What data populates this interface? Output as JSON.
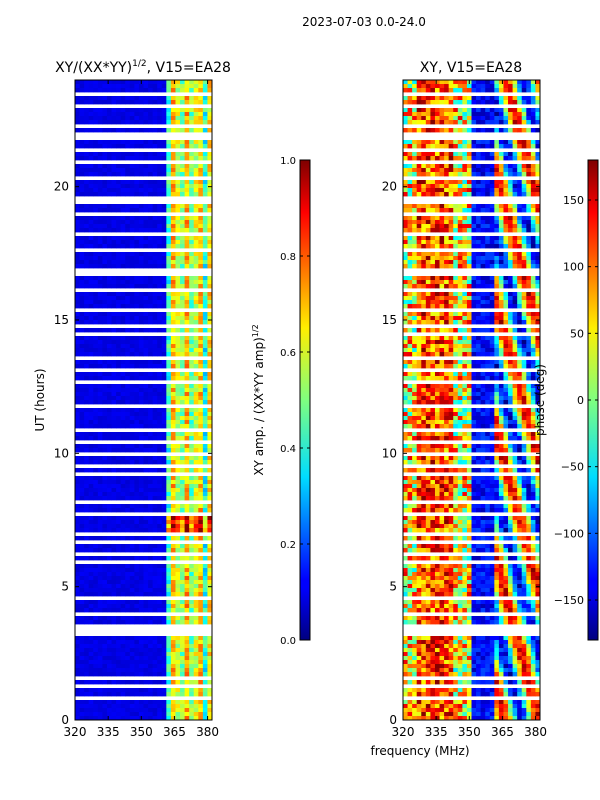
{
  "figure_title": "2023-07-03 0.0-24.0",
  "chart_data": [
    {
      "type": "heatmap",
      "title": "XY/(XX*YY)^1/2, V15=EA28",
      "title_main": "XY/(XX*YY)",
      "title_sup": "1/2",
      "title_tail": ", V15=EA28",
      "xlabel": "",
      "ylabel": "UT (hours)",
      "xlim": [
        320,
        382
      ],
      "ylim": [
        0,
        24
      ],
      "xticks": [
        320,
        335,
        350,
        365,
        380
      ],
      "yticks": [
        0,
        5,
        10,
        15,
        20
      ],
      "colorbar": {
        "label": "XY amp. / (XX*YY amp)^1/2",
        "label_main": "XY amp. / (XX*YY amp)",
        "label_sup": "1/2",
        "range": [
          0.0,
          1.0
        ],
        "ticks": [
          "0.0",
          "0.2",
          "0.4",
          "0.6",
          "0.8",
          "1.0"
        ],
        "tick_values": [
          0.0,
          0.2,
          0.4,
          0.6,
          0.8,
          1.0
        ]
      }
    },
    {
      "type": "heatmap",
      "title": "XY, V15=EA28",
      "xlabel": "frequency (MHz)",
      "ylabel": "",
      "xlim": [
        320,
        382
      ],
      "ylim": [
        0,
        24
      ],
      "xticks": [
        320,
        335,
        350,
        365,
        380
      ],
      "yticks": [
        0,
        5,
        10,
        15,
        20
      ],
      "colorbar": {
        "label": "phase (deg)",
        "range": [
          -180,
          180
        ],
        "ticks": [
          "150",
          "100",
          "50",
          "0",
          "−50",
          "−100",
          "−150"
        ],
        "tick_values": [
          150,
          100,
          50,
          0,
          -50,
          -100,
          -150
        ]
      }
    }
  ]
}
